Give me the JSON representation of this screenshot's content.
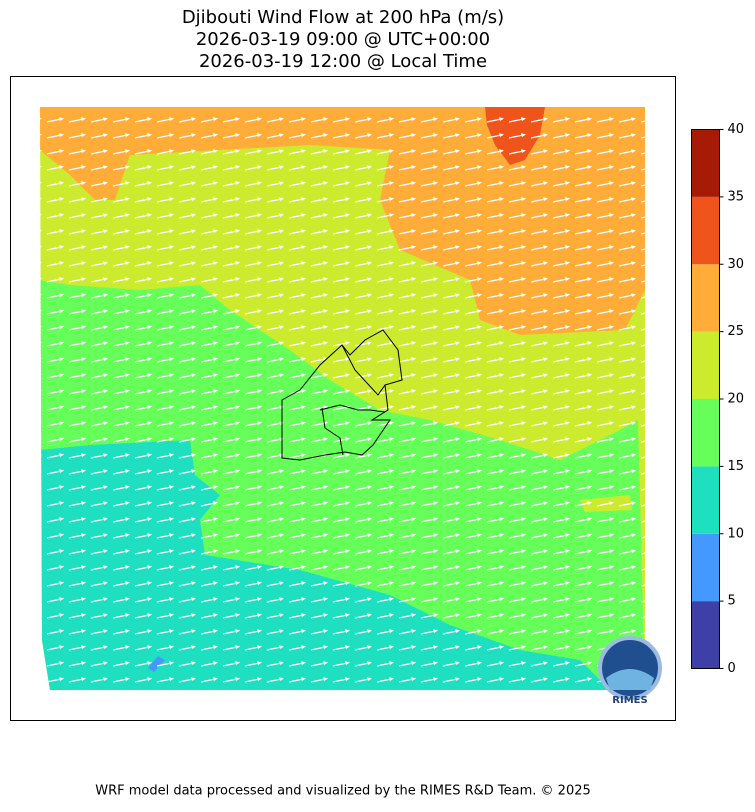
{
  "header": {
    "title_lines": [
      "Djibouti Wind Flow at 200 hPa (m/s)",
      "2026-03-19 09:00 @ UTC+00:00",
      "2026-03-19 12:00 @ Local Time"
    ]
  },
  "colorbar": {
    "ticks": [
      0,
      5,
      10,
      15,
      20,
      25,
      30,
      35,
      40
    ],
    "colors": [
      "#3f3fa8",
      "#4499ff",
      "#1ee0c0",
      "#66ff5a",
      "#cceb2e",
      "#ffad38",
      "#f0541a",
      "#a61a06"
    ]
  },
  "logo": {
    "text": "RIMES"
  },
  "footer": {
    "text": "WRF model data processed and visualized by the RIMES R&D Team. © 2025"
  }
}
